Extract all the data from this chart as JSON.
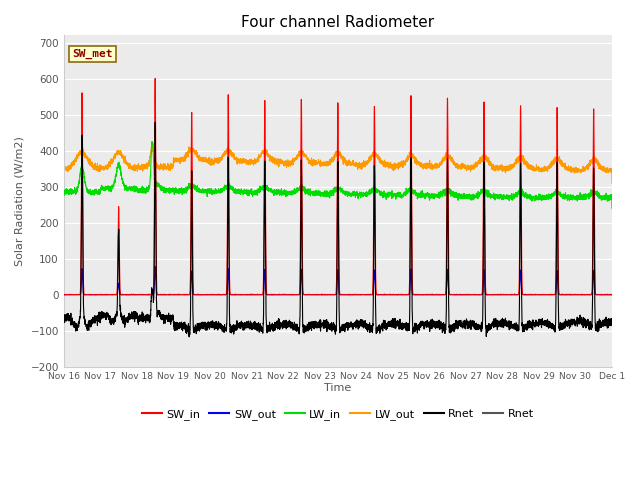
{
  "title": "Four channel Radiometer",
  "xlabel": "Time",
  "ylabel": "Solar Radiation (W/m2)",
  "ylim": [
    -200,
    720
  ],
  "yticks": [
    -200,
    -100,
    0,
    100,
    200,
    300,
    400,
    500,
    600,
    700
  ],
  "annotation": "SW_met",
  "plot_bg": "#ebebeb",
  "series": {
    "SW_in": {
      "color": "#ff0000",
      "lw": 0.8
    },
    "SW_out": {
      "color": "#0000ff",
      "lw": 0.8
    },
    "LW_in": {
      "color": "#00dd00",
      "lw": 0.8
    },
    "LW_out": {
      "color": "#ff9900",
      "lw": 0.8
    },
    "Rnet": {
      "color": "#000000",
      "lw": 0.8
    },
    "Rnet2": {
      "color": "#555555",
      "lw": 0.8
    }
  },
  "legend": [
    {
      "label": "SW_in",
      "color": "#ff0000"
    },
    {
      "label": "SW_out",
      "color": "#0000ff"
    },
    {
      "label": "LW_in",
      "color": "#00dd00"
    },
    {
      "label": "LW_out",
      "color": "#ff9900"
    },
    {
      "label": "Rnet",
      "color": "#000000"
    },
    {
      "label": "Rnet",
      "color": "#555555"
    }
  ],
  "n_days": 15,
  "pts_per_day": 288,
  "start_day": 16,
  "seed": 42
}
